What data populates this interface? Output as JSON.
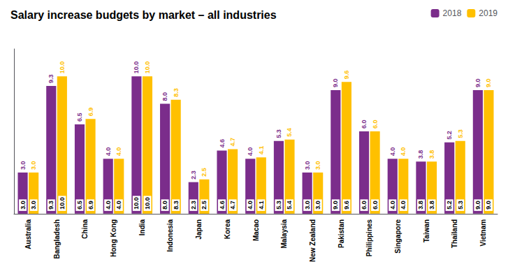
{
  "chart_data": {
    "type": "bar",
    "title": "Salary increase budgets by market – all industries",
    "categories": [
      "Australia",
      "Bangladesh",
      "China",
      "Hong Kong",
      "India",
      "Indonesia",
      "Japan",
      "Korea",
      "Macao",
      "Malaysia",
      "New Zealand",
      "Pakistan",
      "Philippines",
      "Singapore",
      "Taiwan",
      "Thailand",
      "Vietnam"
    ],
    "series": [
      {
        "name": "2018",
        "color": "#7B2D8B",
        "values": [
          3.0,
          9.3,
          6.5,
          4.0,
          10.0,
          8.0,
          2.3,
          4.6,
          4.0,
          5.3,
          3.0,
          9.0,
          6.0,
          4.0,
          3.8,
          5.2,
          9.0
        ],
        "value_labels": [
          "3.0",
          "9.3",
          "6.5",
          "4.0",
          "10.0",
          "8.0",
          "2.3",
          "4.6",
          "4.0",
          "5.3",
          "3.0",
          "9.0",
          "6.0",
          "4.0",
          "3.8",
          "5.2",
          "9.0"
        ]
      },
      {
        "name": "2019",
        "color": "#FFC000",
        "values": [
          3.0,
          10.0,
          6.9,
          4.0,
          10.0,
          8.3,
          2.5,
          4.7,
          4.1,
          5.4,
          3.0,
          9.6,
          6.0,
          4.0,
          3.8,
          5.3,
          9.0
        ],
        "value_labels": [
          "3.0",
          "10.0",
          "6.9",
          "4.0",
          "10.0",
          "8.3",
          "2.5",
          "4.7",
          "4.1",
          "5.4",
          "3.0",
          "9.6",
          "6.0",
          "4.0",
          "3.8",
          "5.3",
          "9.0"
        ]
      }
    ],
    "ylim": [
      0,
      12.0
    ],
    "grid": false,
    "legend": "upper right",
    "data_labels": true,
    "tick_labels": "x"
  }
}
